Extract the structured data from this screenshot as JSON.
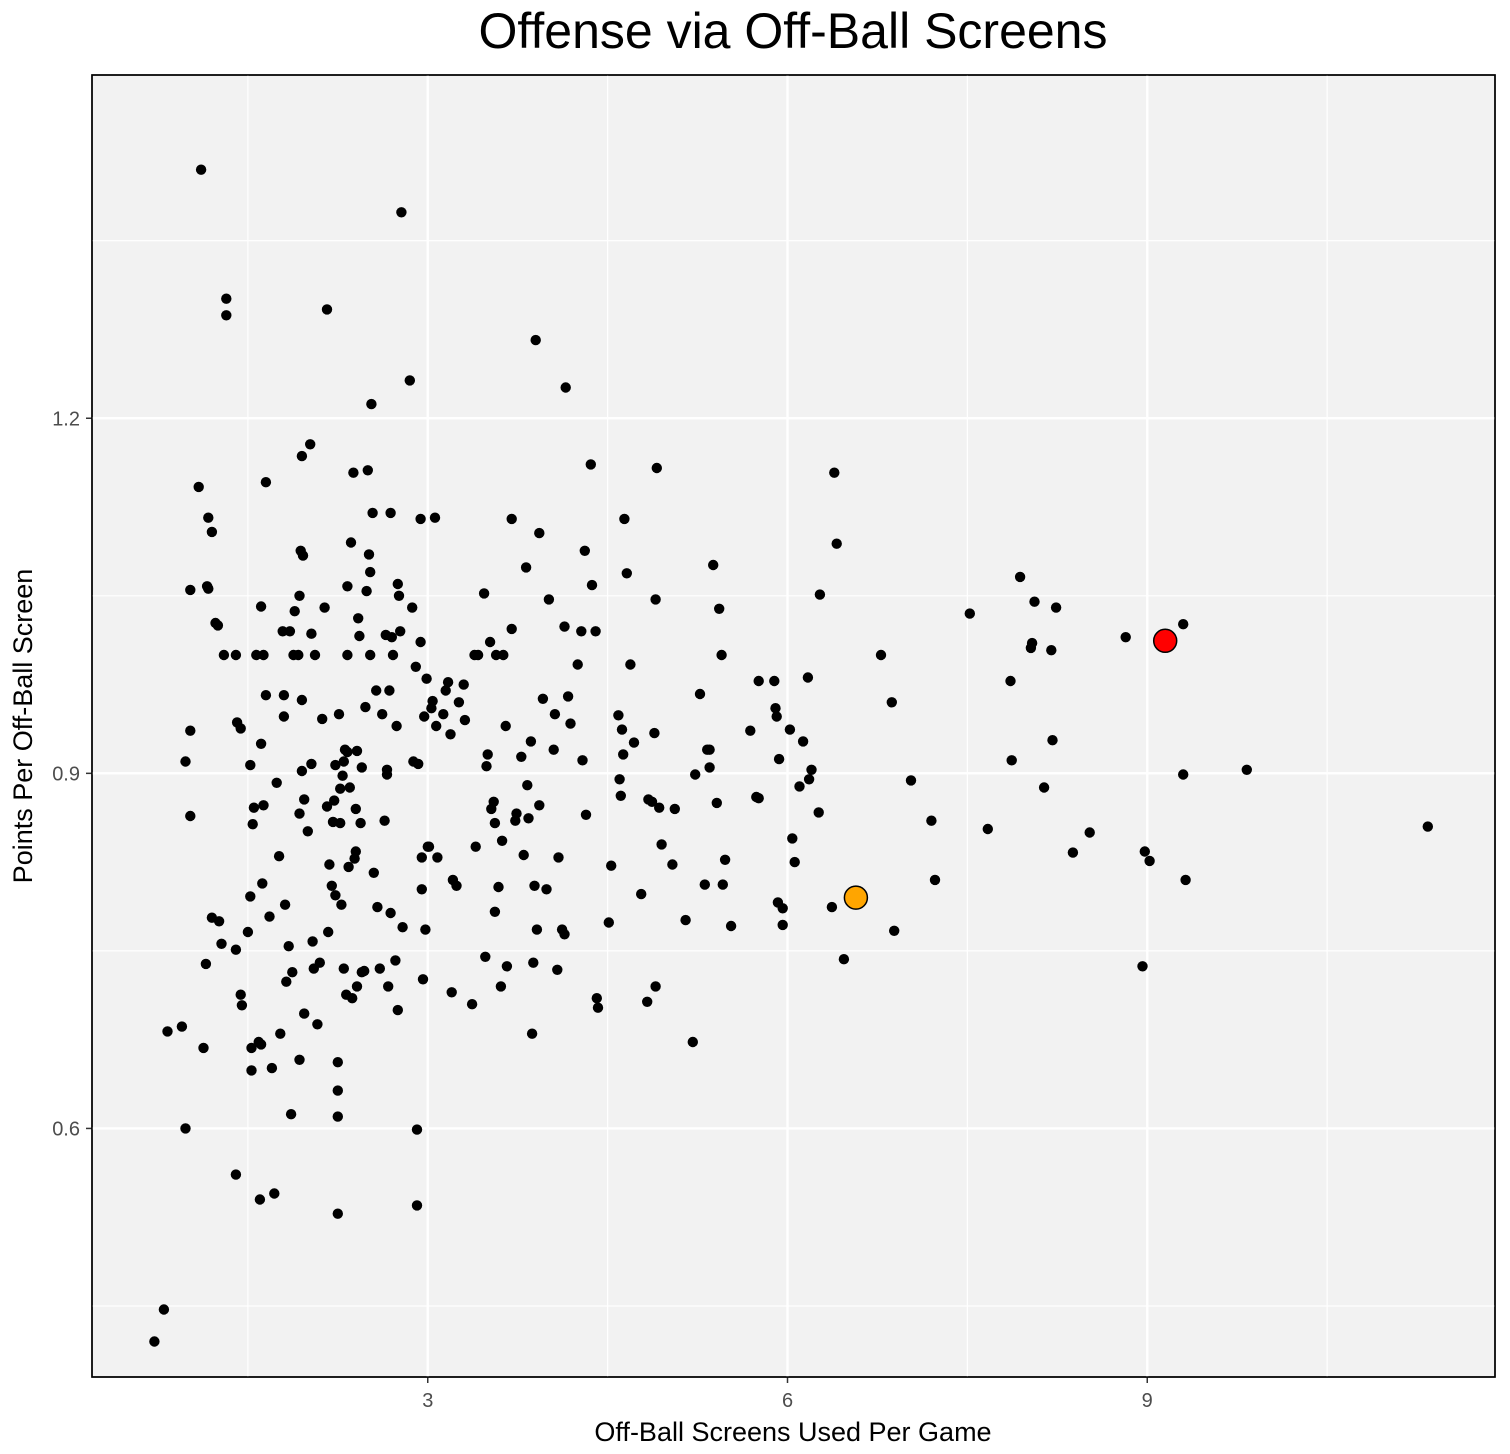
{
  "chart_data": {
    "type": "scatter",
    "title": "Offense via Off-Ball Screens",
    "xlabel": "Off-Ball Screens Used Per Game",
    "ylabel": "Points Per Off-Ball Screen",
    "xlim": [
      0.2,
      11.9
    ],
    "ylim": [
      0.39,
      1.49
    ],
    "x_ticks": [
      3,
      6,
      9
    ],
    "x_tick_labels": [
      "3",
      "6",
      "9"
    ],
    "y_ticks": [
      0.6,
      0.9,
      1.2
    ],
    "y_tick_labels": [
      "0.6",
      "0.9",
      "1.2"
    ],
    "grid": true,
    "panel_color": "#f2f2f2",
    "grid_color": "#ffffff",
    "point_color": "#000000",
    "highlights": [
      {
        "x": 9.15,
        "y": 1.012,
        "color": "#ff0000"
      },
      {
        "x": 6.57,
        "y": 0.795,
        "color": "#ffa500"
      }
    ],
    "points": [
      [
        0.72,
        0.42
      ],
      [
        0.8,
        0.447
      ],
      [
        0.83,
        0.682
      ],
      [
        0.95,
        0.686
      ],
      [
        0.98,
        0.6
      ],
      [
        0.98,
        0.91
      ],
      [
        1.02,
        1.055
      ],
      [
        1.02,
        0.936
      ],
      [
        1.02,
        0.864
      ],
      [
        1.09,
        1.142
      ],
      [
        1.11,
        1.41
      ],
      [
        1.13,
        0.668
      ],
      [
        1.15,
        0.739
      ],
      [
        1.17,
        1.116
      ],
      [
        1.16,
        1.058
      ],
      [
        1.17,
        1.056
      ],
      [
        1.2,
        1.104
      ],
      [
        1.2,
        0.778
      ],
      [
        1.23,
        1.027
      ],
      [
        1.25,
        1.025
      ],
      [
        1.26,
        0.775
      ],
      [
        1.28,
        0.756
      ],
      [
        1.3,
        1.0
      ],
      [
        1.32,
        1.301
      ],
      [
        1.32,
        1.287
      ],
      [
        1.4,
        1.0
      ],
      [
        1.4,
        0.561
      ],
      [
        1.4,
        0.751
      ],
      [
        1.41,
        0.943
      ],
      [
        1.44,
        0.938
      ],
      [
        1.44,
        0.713
      ],
      [
        1.45,
        0.704
      ],
      [
        1.5,
        0.766
      ],
      [
        1.52,
        0.907
      ],
      [
        1.52,
        0.796
      ],
      [
        1.53,
        0.668
      ],
      [
        1.53,
        0.649
      ],
      [
        1.54,
        0.857
      ],
      [
        1.55,
        0.871
      ],
      [
        1.57,
        1.0
      ],
      [
        1.59,
        0.673
      ],
      [
        1.6,
        0.54
      ],
      [
        1.61,
        1.041
      ],
      [
        1.61,
        0.925
      ],
      [
        1.61,
        0.671
      ],
      [
        1.62,
        0.807
      ],
      [
        1.63,
        1.0
      ],
      [
        1.63,
        0.873
      ],
      [
        1.65,
        1.146
      ],
      [
        1.65,
        0.966
      ],
      [
        1.68,
        0.779
      ],
      [
        1.7,
        0.651
      ],
      [
        1.72,
        0.545
      ],
      [
        1.74,
        0.892
      ],
      [
        1.76,
        0.83
      ],
      [
        1.77,
        0.68
      ],
      [
        1.79,
        1.02
      ],
      [
        1.8,
        0.948
      ],
      [
        1.8,
        0.966
      ],
      [
        1.81,
        0.789
      ],
      [
        1.82,
        0.724
      ],
      [
        1.84,
        0.754
      ],
      [
        1.85,
        1.02
      ],
      [
        1.86,
        0.612
      ],
      [
        1.87,
        0.732
      ],
      [
        1.88,
        1.0
      ],
      [
        1.89,
        1.037
      ],
      [
        1.92,
        1.0
      ],
      [
        1.93,
        1.05
      ],
      [
        1.93,
        0.866
      ],
      [
        1.93,
        0.658
      ],
      [
        1.94,
        1.088
      ],
      [
        1.95,
        1.168
      ],
      [
        1.95,
        0.962
      ],
      [
        1.95,
        0.902
      ],
      [
        1.96,
        1.084
      ],
      [
        1.97,
        0.878
      ],
      [
        1.97,
        0.697
      ],
      [
        2.0,
        0.851
      ],
      [
        2.02,
        1.178
      ],
      [
        2.03,
        1.018
      ],
      [
        2.03,
        0.908
      ],
      [
        2.04,
        0.758
      ],
      [
        2.05,
        0.735
      ],
      [
        2.06,
        1.0
      ],
      [
        2.08,
        0.688
      ],
      [
        2.1,
        0.74
      ],
      [
        2.12,
        0.946
      ],
      [
        2.14,
        1.04
      ],
      [
        2.16,
        1.292
      ],
      [
        2.16,
        0.872
      ],
      [
        2.17,
        0.766
      ],
      [
        2.18,
        0.823
      ],
      [
        2.2,
        0.805
      ],
      [
        2.21,
        0.859
      ],
      [
        2.22,
        0.877
      ],
      [
        2.23,
        0.797
      ],
      [
        2.23,
        0.907
      ],
      [
        2.25,
        0.656
      ],
      [
        2.25,
        0.632
      ],
      [
        2.25,
        0.61
      ],
      [
        2.25,
        0.528
      ],
      [
        2.26,
        0.95
      ],
      [
        2.27,
        0.858
      ],
      [
        2.27,
        0.887
      ],
      [
        2.28,
        0.789
      ],
      [
        2.29,
        0.898
      ],
      [
        2.3,
        0.91
      ],
      [
        2.3,
        0.735
      ],
      [
        2.31,
        0.92
      ],
      [
        2.32,
        0.713
      ],
      [
        2.33,
        1.058
      ],
      [
        2.33,
        1.0
      ],
      [
        2.33,
        0.918
      ],
      [
        2.34,
        0.821
      ],
      [
        2.35,
        0.888
      ],
      [
        2.36,
        1.095
      ],
      [
        2.37,
        0.71
      ],
      [
        2.38,
        1.154
      ],
      [
        2.39,
        0.828
      ],
      [
        2.4,
        0.87
      ],
      [
        2.4,
        0.834
      ],
      [
        2.41,
        0.72
      ],
      [
        2.41,
        0.919
      ],
      [
        2.42,
        1.031
      ],
      [
        2.43,
        1.016
      ],
      [
        2.44,
        0.858
      ],
      [
        2.45,
        0.905
      ],
      [
        2.45,
        0.732
      ],
      [
        2.47,
        0.733
      ],
      [
        2.48,
        0.956
      ],
      [
        2.49,
        1.054
      ],
      [
        2.5,
        1.156
      ],
      [
        2.51,
        1.085
      ],
      [
        2.52,
        1.07
      ],
      [
        2.52,
        1.0
      ],
      [
        2.53,
        1.212
      ],
      [
        2.54,
        1.12
      ],
      [
        2.55,
        0.816
      ],
      [
        2.57,
        0.97
      ],
      [
        2.58,
        0.787
      ],
      [
        2.6,
        0.735
      ],
      [
        2.62,
        0.95
      ],
      [
        2.64,
        0.86
      ],
      [
        2.65,
        1.017
      ],
      [
        2.66,
        0.899
      ],
      [
        2.66,
        0.903
      ],
      [
        2.67,
        0.72
      ],
      [
        2.68,
        0.97
      ],
      [
        2.69,
        1.12
      ],
      [
        2.69,
        0.782
      ],
      [
        2.7,
        1.015
      ],
      [
        2.71,
        1.0
      ],
      [
        2.73,
        0.742
      ],
      [
        2.74,
        0.94
      ],
      [
        2.75,
        1.06
      ],
      [
        2.75,
        0.7
      ],
      [
        2.76,
        1.05
      ],
      [
        2.77,
        1.02
      ],
      [
        2.78,
        1.374
      ],
      [
        2.79,
        0.77
      ],
      [
        2.85,
        1.232
      ],
      [
        2.87,
        1.04
      ],
      [
        2.88,
        0.91
      ],
      [
        2.9,
        0.99
      ],
      [
        2.91,
        0.535
      ],
      [
        2.91,
        0.599
      ],
      [
        2.92,
        0.908
      ],
      [
        2.94,
        1.115
      ],
      [
        2.94,
        1.011
      ],
      [
        2.95,
        0.829
      ],
      [
        2.95,
        0.802
      ],
      [
        2.96,
        0.726
      ],
      [
        2.97,
        0.948
      ],
      [
        2.98,
        0.768
      ],
      [
        2.99,
        0.98
      ],
      [
        3.0,
        0.838
      ],
      [
        3.01,
        0.838
      ],
      [
        3.03,
        0.955
      ],
      [
        3.04,
        0.961
      ],
      [
        3.06,
        1.116
      ],
      [
        3.07,
        0.94
      ],
      [
        3.08,
        0.829
      ],
      [
        3.13,
        0.95
      ],
      [
        3.15,
        0.97
      ],
      [
        3.17,
        0.977
      ],
      [
        3.19,
        0.933
      ],
      [
        3.2,
        0.715
      ],
      [
        3.21,
        0.81
      ],
      [
        3.24,
        0.805
      ],
      [
        3.26,
        0.96
      ],
      [
        3.3,
        0.975
      ],
      [
        3.31,
        0.945
      ],
      [
        3.37,
        0.705
      ],
      [
        3.39,
        1.0
      ],
      [
        3.4,
        0.838
      ],
      [
        3.42,
        1.0
      ],
      [
        3.47,
        1.052
      ],
      [
        3.48,
        0.745
      ],
      [
        3.49,
        0.906
      ],
      [
        3.5,
        0.916
      ],
      [
        3.52,
        1.011
      ],
      [
        3.53,
        0.87
      ],
      [
        3.55,
        0.876
      ],
      [
        3.56,
        0.783
      ],
      [
        3.56,
        0.858
      ],
      [
        3.57,
        1.0
      ],
      [
        3.59,
        0.804
      ],
      [
        3.61,
        0.72
      ],
      [
        3.62,
        0.843
      ],
      [
        3.63,
        1.0
      ],
      [
        3.65,
        0.94
      ],
      [
        3.66,
        0.737
      ],
      [
        3.7,
        1.022
      ],
      [
        3.7,
        1.115
      ],
      [
        3.73,
        0.86
      ],
      [
        3.74,
        0.866
      ],
      [
        3.78,
        0.914
      ],
      [
        3.8,
        0.831
      ],
      [
        3.82,
        1.074
      ],
      [
        3.83,
        0.89
      ],
      [
        3.84,
        0.862
      ],
      [
        3.86,
        0.927
      ],
      [
        3.87,
        0.68
      ],
      [
        3.88,
        0.74
      ],
      [
        3.89,
        0.805
      ],
      [
        3.9,
        1.266
      ],
      [
        3.91,
        0.768
      ],
      [
        3.93,
        1.103
      ],
      [
        3.93,
        0.873
      ],
      [
        3.96,
        0.963
      ],
      [
        3.99,
        0.802
      ],
      [
        4.01,
        1.047
      ],
      [
        4.05,
        0.92
      ],
      [
        4.06,
        0.95
      ],
      [
        4.08,
        0.734
      ],
      [
        4.09,
        0.829
      ],
      [
        4.12,
        0.768
      ],
      [
        4.14,
        1.024
      ],
      [
        4.14,
        0.764
      ],
      [
        4.15,
        1.226
      ],
      [
        4.17,
        0.965
      ],
      [
        4.19,
        0.942
      ],
      [
        4.25,
        0.992
      ],
      [
        4.28,
        1.02
      ],
      [
        4.29,
        0.911
      ],
      [
        4.31,
        1.088
      ],
      [
        4.32,
        0.865
      ],
      [
        4.36,
        1.161
      ],
      [
        4.37,
        1.059
      ],
      [
        4.4,
        1.02
      ],
      [
        4.41,
        0.71
      ],
      [
        4.42,
        0.702
      ],
      [
        4.51,
        0.774
      ],
      [
        4.53,
        0.822
      ],
      [
        4.59,
        0.949
      ],
      [
        4.6,
        0.895
      ],
      [
        4.61,
        0.881
      ],
      [
        4.62,
        0.937
      ],
      [
        4.63,
        0.916
      ],
      [
        4.64,
        1.115
      ],
      [
        4.66,
        1.069
      ],
      [
        4.69,
        0.992
      ],
      [
        4.72,
        0.926
      ],
      [
        4.78,
        0.798
      ],
      [
        4.83,
        0.707
      ],
      [
        4.84,
        0.878
      ],
      [
        4.87,
        0.876
      ],
      [
        4.89,
        0.934
      ],
      [
        4.9,
        1.047
      ],
      [
        4.9,
        0.72
      ],
      [
        4.91,
        1.158
      ],
      [
        4.93,
        0.871
      ],
      [
        4.95,
        0.84
      ],
      [
        5.04,
        0.823
      ],
      [
        5.06,
        0.87
      ],
      [
        5.15,
        0.776
      ],
      [
        5.21,
        0.673
      ],
      [
        5.23,
        0.899
      ],
      [
        5.27,
        0.967
      ],
      [
        5.31,
        0.806
      ],
      [
        5.33,
        0.92
      ],
      [
        5.35,
        0.905
      ],
      [
        5.35,
        0.92
      ],
      [
        5.38,
        1.076
      ],
      [
        5.41,
        0.875
      ],
      [
        5.43,
        1.039
      ],
      [
        5.45,
        1.0
      ],
      [
        5.46,
        0.806
      ],
      [
        5.48,
        0.827
      ],
      [
        5.53,
        0.771
      ],
      [
        5.69,
        0.936
      ],
      [
        5.74,
        0.88
      ],
      [
        5.76,
        0.978
      ],
      [
        5.76,
        0.879
      ],
      [
        5.89,
        0.978
      ],
      [
        5.9,
        0.955
      ],
      [
        5.91,
        0.948
      ],
      [
        5.92,
        0.791
      ],
      [
        5.93,
        0.912
      ],
      [
        5.96,
        0.786
      ],
      [
        5.96,
        0.772
      ],
      [
        6.02,
        0.937
      ],
      [
        6.04,
        0.845
      ],
      [
        6.06,
        0.825
      ],
      [
        6.1,
        0.889
      ],
      [
        6.13,
        0.927
      ],
      [
        6.17,
        0.981
      ],
      [
        6.18,
        0.895
      ],
      [
        6.2,
        0.903
      ],
      [
        6.26,
        0.867
      ],
      [
        6.27,
        1.051
      ],
      [
        6.37,
        0.787
      ],
      [
        6.39,
        1.154
      ],
      [
        6.41,
        1.094
      ],
      [
        6.47,
        0.743
      ],
      [
        6.78,
        1.0
      ],
      [
        6.87,
        0.96
      ],
      [
        6.89,
        0.767
      ],
      [
        7.03,
        0.894
      ],
      [
        7.2,
        0.86
      ],
      [
        7.23,
        0.81
      ],
      [
        7.52,
        1.035
      ],
      [
        7.67,
        0.853
      ],
      [
        7.86,
        0.978
      ],
      [
        7.87,
        0.911
      ],
      [
        7.94,
        1.066
      ],
      [
        8.03,
        1.006
      ],
      [
        8.04,
        1.01
      ],
      [
        8.06,
        1.045
      ],
      [
        8.14,
        0.888
      ],
      [
        8.2,
        1.004
      ],
      [
        8.21,
        0.928
      ],
      [
        8.24,
        1.04
      ],
      [
        8.38,
        0.833
      ],
      [
        8.52,
        0.85
      ],
      [
        8.82,
        1.015
      ],
      [
        8.96,
        0.737
      ],
      [
        8.98,
        0.834
      ],
      [
        9.02,
        0.826
      ],
      [
        9.3,
        1.026
      ],
      [
        9.3,
        0.899
      ],
      [
        9.32,
        0.81
      ],
      [
        9.83,
        0.903
      ],
      [
        11.34,
        0.855
      ]
    ]
  }
}
